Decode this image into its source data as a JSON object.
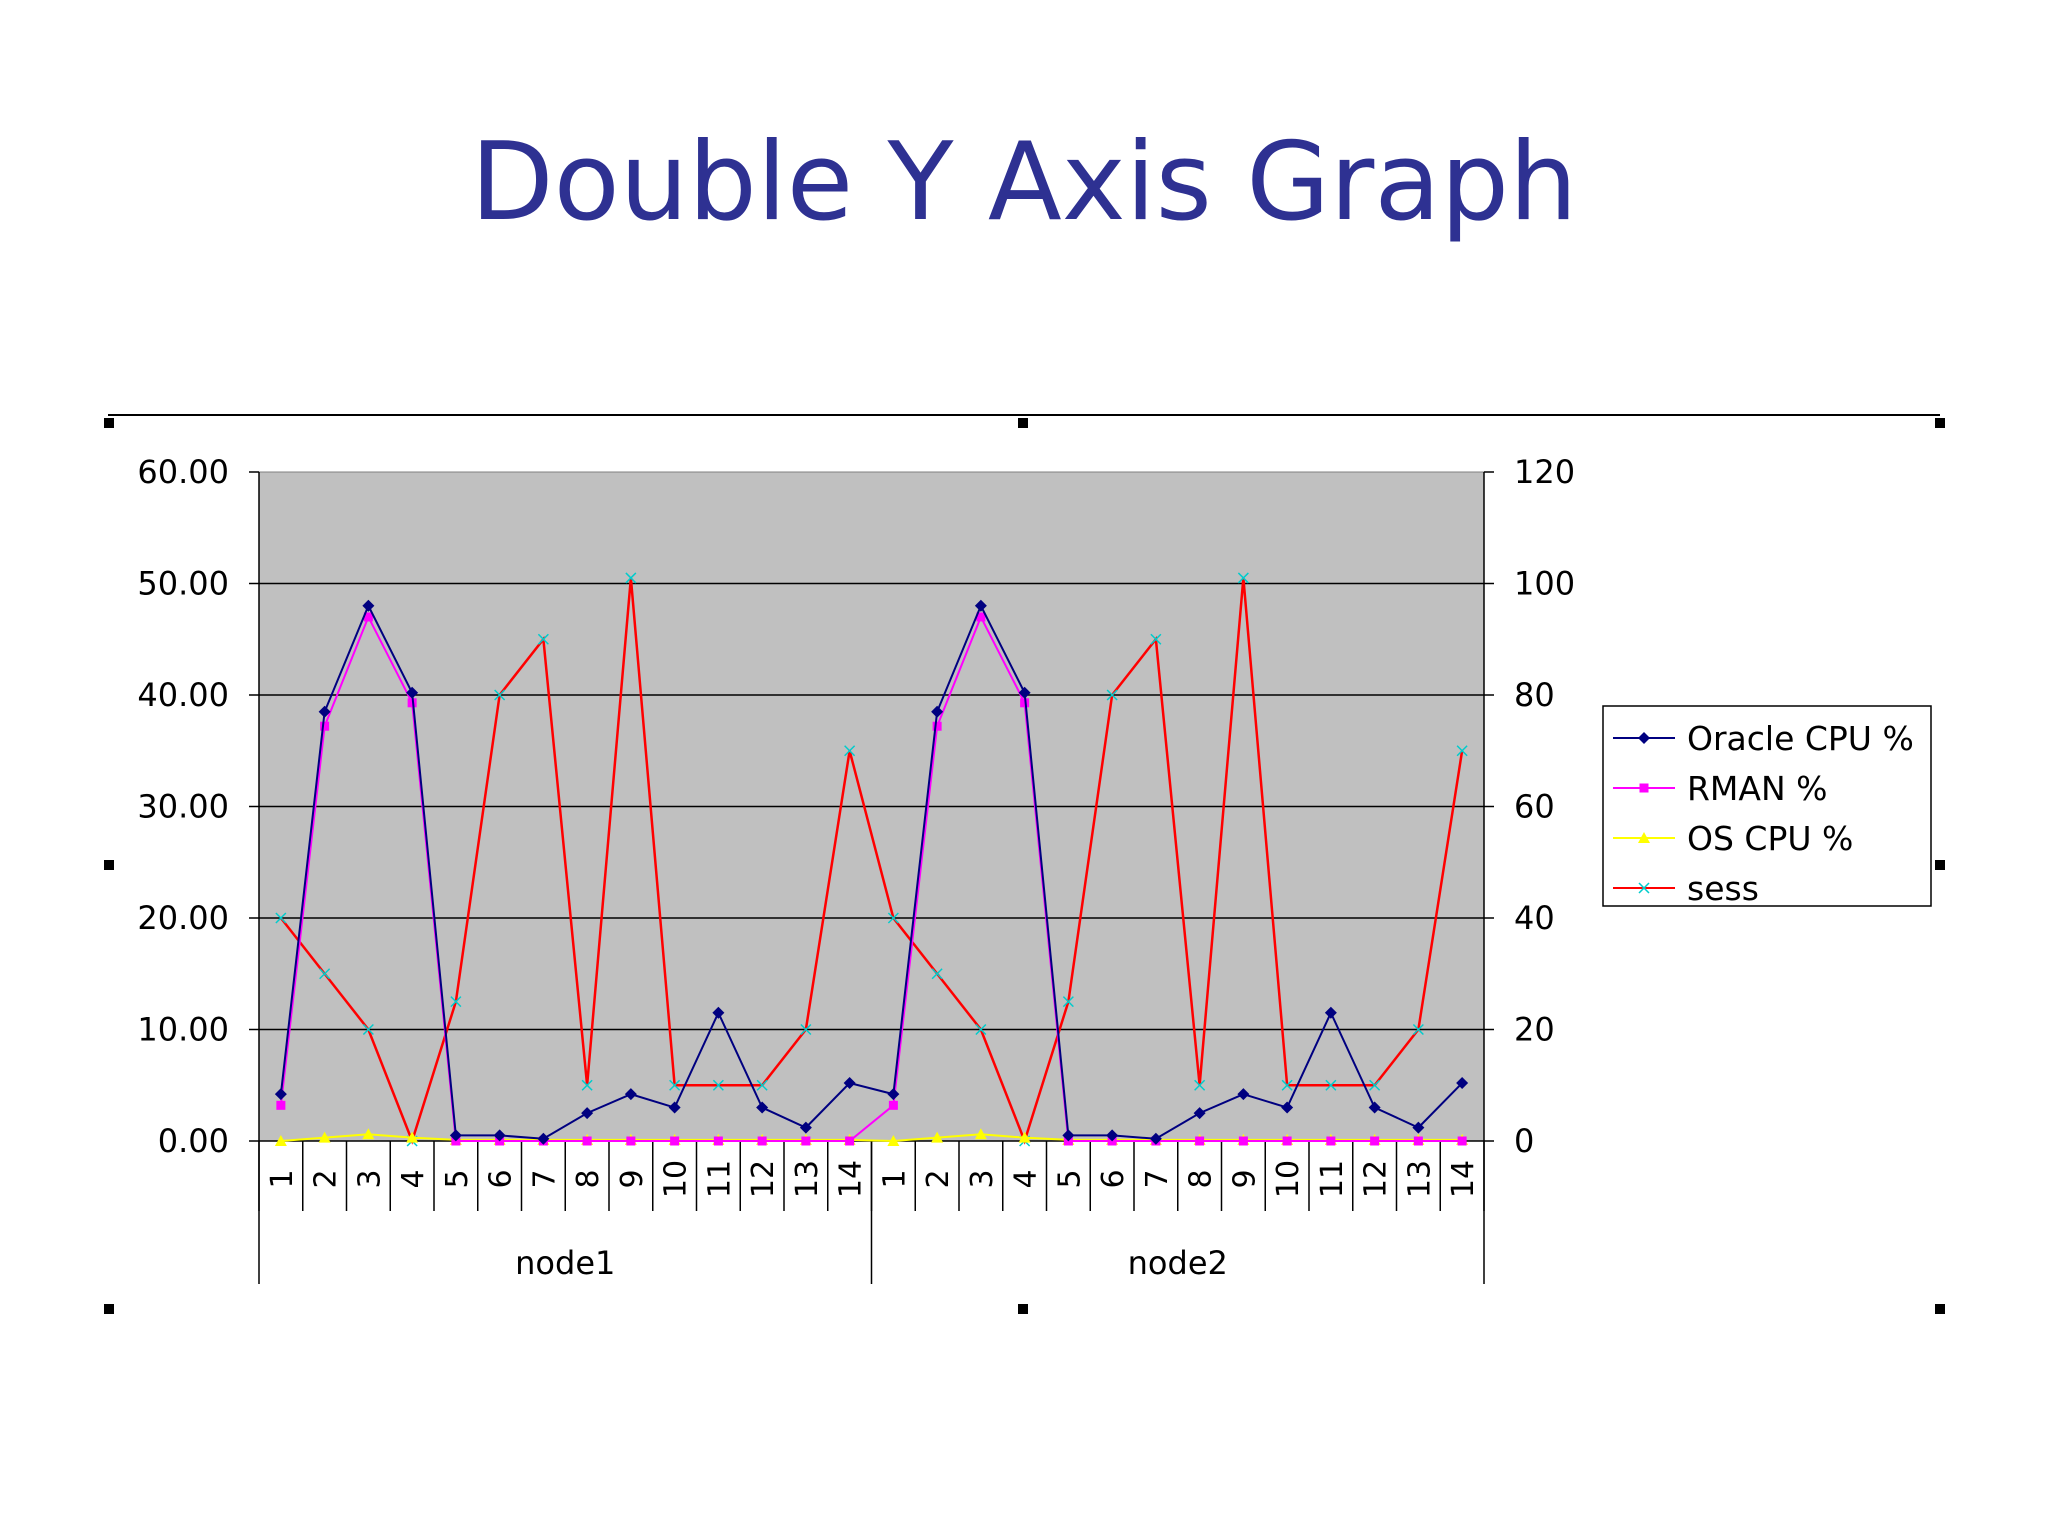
{
  "slide": {
    "title": "Double Y Axis Graph"
  },
  "colors": {
    "title": "#2E3192",
    "plot_background": "#C0C0C0",
    "gridline": "#000000"
  },
  "chart_data": {
    "type": "line",
    "title": "",
    "xlabel": "",
    "ylabel": "",
    "y2label": "",
    "ylim": [
      0,
      60
    ],
    "y2lim": [
      0,
      120
    ],
    "y_ticks": [
      "0.00",
      "10.00",
      "20.00",
      "30.00",
      "40.00",
      "50.00",
      "60.00"
    ],
    "y2_ticks": [
      "0",
      "20",
      "40",
      "60",
      "80",
      "100",
      "120"
    ],
    "grid": true,
    "legend_position": "right",
    "groups": [
      {
        "name": "node1",
        "categories": [
          "1",
          "2",
          "3",
          "4",
          "5",
          "6",
          "7",
          "8",
          "9",
          "10",
          "11",
          "12",
          "13",
          "14"
        ]
      },
      {
        "name": "node2",
        "categories": [
          "1",
          "2",
          "3",
          "4",
          "5",
          "6",
          "7",
          "8",
          "9",
          "10",
          "11",
          "12",
          "13",
          "14"
        ]
      }
    ],
    "series": [
      {
        "name": "Oracle CPU %",
        "axis": "left",
        "color": "#000080",
        "marker": "diamond",
        "values": [
          4.2,
          38.5,
          48.0,
          40.2,
          0.5,
          0.5,
          0.2,
          2.5,
          4.2,
          3.0,
          11.5,
          3.0,
          1.2,
          5.2,
          4.2,
          38.5,
          48.0,
          40.2,
          0.5,
          0.5,
          0.2,
          2.5,
          4.2,
          3.0,
          11.5,
          3.0,
          1.2,
          5.2
        ]
      },
      {
        "name": "RMAN %",
        "axis": "left",
        "color": "#FF00FF",
        "marker": "square",
        "values": [
          3.2,
          37.2,
          47.0,
          39.3,
          0.0,
          0.0,
          0.0,
          0.0,
          0.0,
          0.0,
          0.0,
          0.0,
          0.0,
          0.0,
          3.2,
          37.2,
          47.0,
          39.3,
          0.0,
          0.0,
          0.0,
          0.0,
          0.0,
          0.0,
          0.0,
          0.0,
          0.0,
          0.0
        ]
      },
      {
        "name": "OS CPU %",
        "axis": "left",
        "color": "#FFFF00",
        "marker": "triangle",
        "values": [
          0.0,
          0.3,
          0.6,
          0.3,
          0.1,
          0.1,
          0.1,
          0.1,
          0.1,
          0.1,
          0.1,
          0.1,
          0.1,
          0.1,
          0.0,
          0.3,
          0.6,
          0.3,
          0.1,
          0.1,
          0.1,
          0.1,
          0.1,
          0.1,
          0.1,
          0.1,
          0.1,
          0.1
        ]
      },
      {
        "name": "sess",
        "axis": "right",
        "color": "#FF0000",
        "marker": "x",
        "values": [
          40,
          30,
          20,
          0,
          25,
          80,
          90,
          10,
          101,
          10,
          10,
          10,
          20,
          70,
          40,
          30,
          20,
          0,
          25,
          80,
          90,
          10,
          101,
          10,
          10,
          10,
          20,
          70
        ]
      }
    ]
  }
}
